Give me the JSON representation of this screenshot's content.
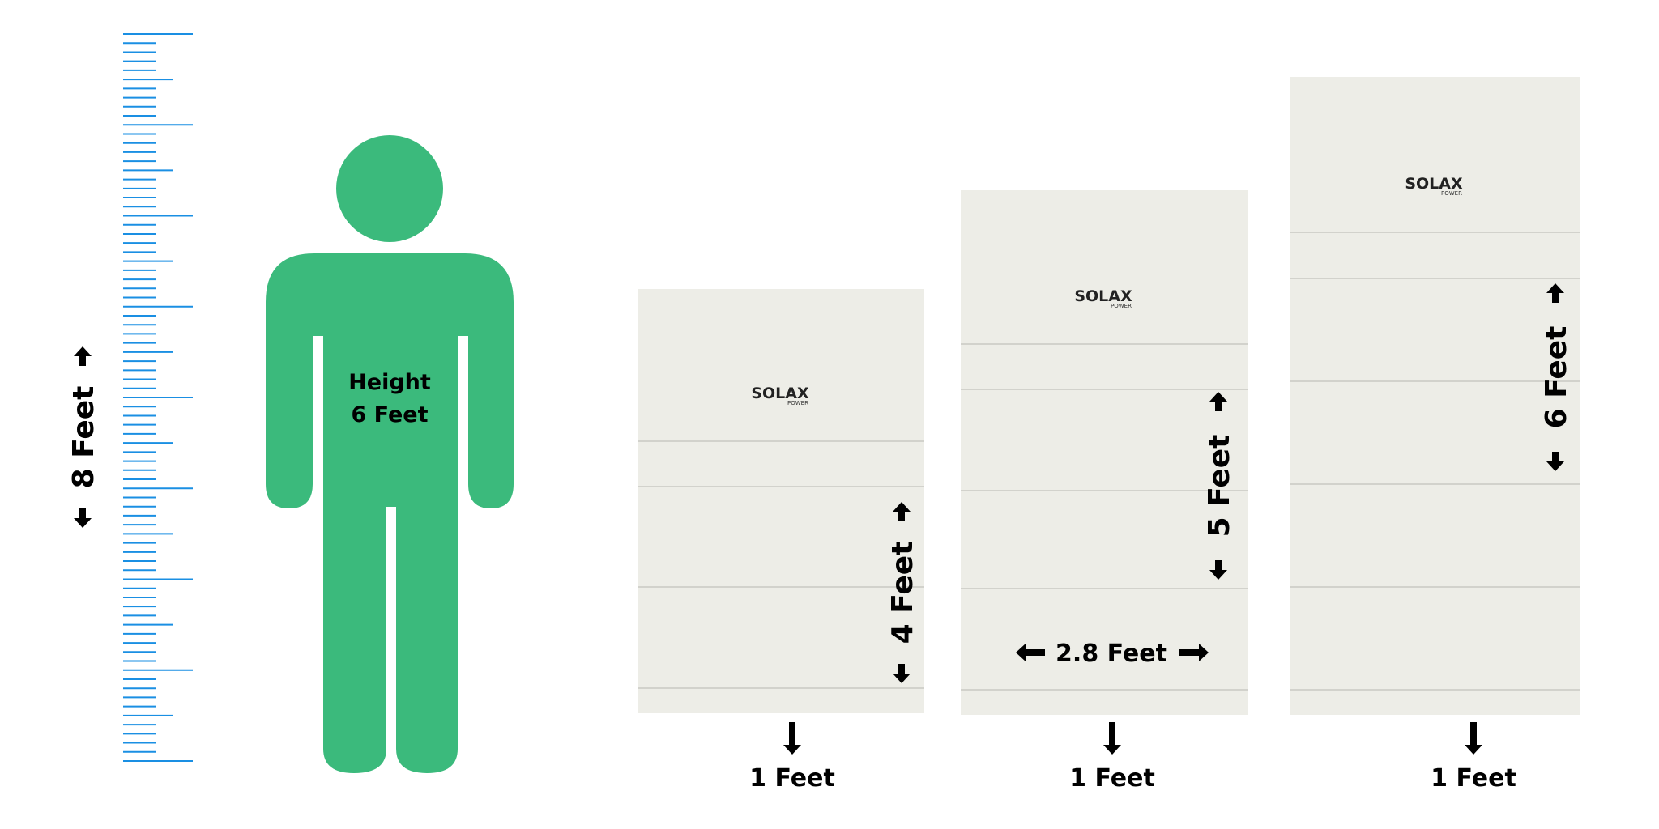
{
  "ruler": {
    "label": "8 Feet",
    "color": "#1a8fe3"
  },
  "person": {
    "line1": "Height",
    "line2": "6 Feet",
    "color": "#3bba7c"
  },
  "battery_units": [
    {
      "height_label": "4 Feet",
      "base_label": "1 Feet",
      "brand": "SOLAX",
      "brand_sub": "POWER"
    },
    {
      "height_label": "5 Feet",
      "base_label": "1 Feet",
      "width_label": "2.8 Feet",
      "brand": "SOLAX",
      "brand_sub": "POWER"
    },
    {
      "height_label": "6 Feet",
      "base_label": "1 Feet",
      "brand": "SOLAX",
      "brand_sub": "POWER"
    }
  ],
  "colors": {
    "cabinet": "#edede7",
    "divider": "#c9c9c4"
  },
  "icons": {
    "up_arrow": "arrow-up-icon",
    "down_arrow": "arrow-down-icon",
    "left_arrow": "arrow-left-icon",
    "right_arrow": "arrow-right-icon"
  }
}
